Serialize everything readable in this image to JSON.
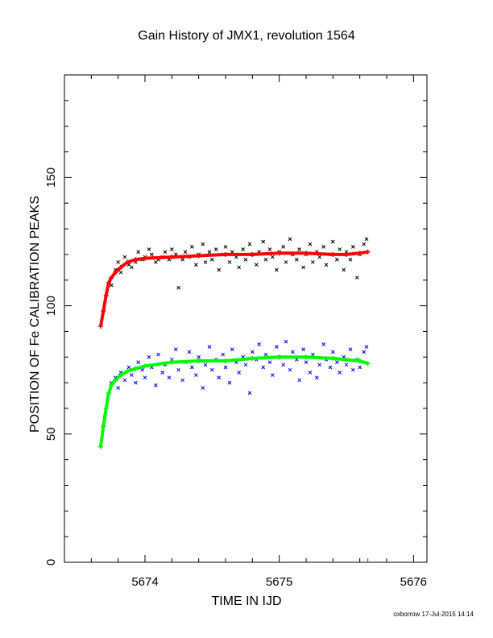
{
  "chart_data": {
    "type": "scatter",
    "title": "Gain History of JMX1, revolution 1564",
    "xlabel": "TIME IN IJD",
    "ylabel": "POSITION OF Fe CALIBRATION PEAKS",
    "xlim": [
      5673.4,
      5676.1
    ],
    "ylim": [
      0,
      190
    ],
    "x_ticks": [
      5674,
      5675,
      5676
    ],
    "y_ticks": [
      0,
      50,
      100,
      150
    ],
    "grid": false,
    "colors": {
      "upper_raw": "#000000",
      "upper_fit": "#ff0000",
      "lower_raw": "#0000ff",
      "lower_fit": "#00ff00"
    },
    "series": [
      {
        "key": "upper_fit",
        "marker": "plus",
        "style": "plus",
        "x": [
          5673.67,
          5673.69,
          5673.71,
          5673.73,
          5673.75,
          5673.78,
          5673.82,
          5673.87,
          5673.93,
          5674.0,
          5674.2,
          5674.4,
          5674.6,
          5674.8,
          5675.0,
          5675.2,
          5675.4,
          5675.5,
          5675.6,
          5675.66
        ],
        "y": [
          92,
          98,
          104,
          109,
          111,
          113,
          115,
          117,
          118,
          118.5,
          119,
          119.5,
          120,
          120,
          120.5,
          120.5,
          120,
          120,
          120.5,
          121
        ]
      },
      {
        "key": "lower_fit",
        "marker": "plus",
        "style": "plus",
        "x": [
          5673.67,
          5673.69,
          5673.71,
          5673.73,
          5673.75,
          5673.78,
          5673.82,
          5673.87,
          5673.93,
          5674.0,
          5674.2,
          5674.4,
          5674.6,
          5674.8,
          5675.0,
          5675.2,
          5675.4,
          5675.5,
          5675.6,
          5675.66
        ],
        "y": [
          45,
          53,
          60,
          66,
          69,
          71,
          73,
          74.5,
          75.5,
          76.5,
          78,
          78.5,
          78.5,
          79.5,
          80,
          80,
          79.5,
          79,
          78.5,
          77.5
        ]
      },
      {
        "key": "upper_raw",
        "marker": "x",
        "style": "cross",
        "x": [
          5673.75,
          5673.78,
          5673.8,
          5673.82,
          5673.85,
          5673.88,
          5673.9,
          5673.93,
          5673.95,
          5673.98,
          5674.0,
          5674.03,
          5674.05,
          5674.08,
          5674.1,
          5674.13,
          5674.15,
          5674.18,
          5674.2,
          5674.23,
          5674.25,
          5674.28,
          5674.3,
          5674.33,
          5674.35,
          5674.38,
          5674.4,
          5674.43,
          5674.45,
          5674.48,
          5674.5,
          5674.53,
          5674.55,
          5674.58,
          5674.6,
          5674.63,
          5674.65,
          5674.68,
          5674.7,
          5674.73,
          5674.75,
          5674.78,
          5674.8,
          5674.83,
          5674.85,
          5674.88,
          5674.9,
          5674.93,
          5674.95,
          5674.98,
          5675.0,
          5675.03,
          5675.05,
          5675.08,
          5675.1,
          5675.13,
          5675.15,
          5675.18,
          5675.2,
          5675.23,
          5675.25,
          5675.28,
          5675.3,
          5675.33,
          5675.35,
          5675.38,
          5675.4,
          5675.43,
          5675.45,
          5675.48,
          5675.5,
          5675.53,
          5675.55,
          5675.58,
          5675.6,
          5675.63,
          5675.65
        ],
        "y": [
          108,
          114,
          117,
          113,
          119,
          116,
          115,
          117,
          121,
          118,
          119,
          122,
          120,
          117,
          118,
          119,
          121,
          118,
          122,
          120,
          107,
          118,
          121,
          119,
          123,
          116,
          120,
          124,
          117,
          121,
          118,
          122,
          114,
          120,
          123,
          117,
          121,
          119,
          115,
          122,
          118,
          124,
          120,
          116,
          121,
          125,
          118,
          122,
          119,
          114,
          121,
          123,
          117,
          126,
          120,
          118,
          122,
          115,
          120,
          124,
          117,
          121,
          119,
          123,
          116,
          120,
          125,
          118,
          122,
          114,
          121,
          118,
          123,
          111,
          120,
          124,
          126
        ]
      },
      {
        "key": "lower_raw",
        "marker": "x",
        "style": "cross",
        "x": [
          5673.75,
          5673.78,
          5673.8,
          5673.82,
          5673.85,
          5673.88,
          5673.9,
          5673.93,
          5673.95,
          5673.98,
          5674.0,
          5674.03,
          5674.05,
          5674.08,
          5674.1,
          5674.13,
          5674.15,
          5674.18,
          5674.2,
          5674.23,
          5674.25,
          5674.28,
          5674.3,
          5674.33,
          5674.35,
          5674.38,
          5674.4,
          5674.43,
          5674.45,
          5674.48,
          5674.5,
          5674.53,
          5674.55,
          5674.58,
          5674.6,
          5674.63,
          5674.65,
          5674.68,
          5674.7,
          5674.73,
          5674.75,
          5674.78,
          5674.8,
          5674.83,
          5674.85,
          5674.88,
          5674.9,
          5674.93,
          5674.95,
          5674.98,
          5675.0,
          5675.03,
          5675.05,
          5675.08,
          5675.1,
          5675.13,
          5675.15,
          5675.18,
          5675.2,
          5675.23,
          5675.25,
          5675.28,
          5675.3,
          5675.33,
          5675.35,
          5675.38,
          5675.4,
          5675.43,
          5675.45,
          5675.48,
          5675.5,
          5675.53,
          5675.55,
          5675.58,
          5675.6,
          5675.63,
          5675.65
        ],
        "y": [
          70,
          72,
          68,
          74,
          71,
          76,
          73,
          70,
          78,
          75,
          72,
          80,
          76,
          69,
          81,
          74,
          77,
          72,
          79,
          83,
          75,
          71,
          78,
          82,
          76,
          73,
          80,
          68,
          77,
          84,
          75,
          79,
          72,
          81,
          76,
          70,
          83,
          78,
          74,
          80,
          77,
          66,
          82,
          79,
          85,
          76,
          81,
          78,
          73,
          84,
          80,
          77,
          86,
          75,
          82,
          79,
          71,
          83,
          78,
          74,
          81,
          72,
          77,
          85,
          79,
          76,
          82,
          78,
          74,
          80,
          77,
          83,
          75,
          79,
          76,
          82,
          84
        ]
      }
    ]
  },
  "footer": "oxborrow 17-Jul-2015 14:14"
}
